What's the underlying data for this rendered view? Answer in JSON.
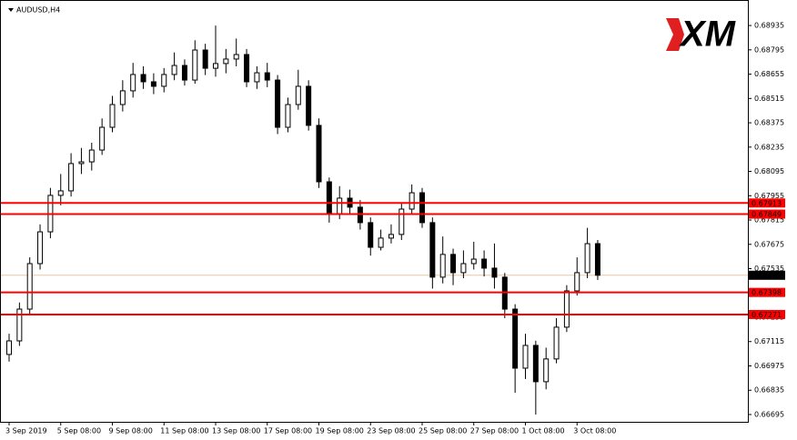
{
  "chart_data": {
    "type": "candlestick",
    "title": "AUDUSD,H4",
    "logo": "XM",
    "categories": [
      "3 Sep 2019",
      null,
      null,
      null,
      null,
      "5 Sep 08:00",
      null,
      null,
      null,
      null,
      "9 Sep 08:00",
      null,
      null,
      null,
      null,
      "11 Sep 08:00",
      null,
      null,
      null,
      null,
      "13 Sep 08:00",
      null,
      null,
      null,
      null,
      "17 Sep 08:00",
      null,
      null,
      null,
      null,
      "19 Sep 08:00",
      null,
      null,
      null,
      null,
      "23 Sep 08:00",
      null,
      null,
      null,
      null,
      "25 Sep 08:00",
      null,
      null,
      null,
      null,
      "27 Sep 08:00",
      null,
      null,
      null,
      null,
      "1 Oct 08:00",
      null,
      null,
      null,
      null,
      "3 Oct 08:00",
      null,
      null
    ],
    "open": [
      0.67041,
      0.67119,
      0.67302,
      0.67564,
      0.67747,
      0.67957,
      0.67983,
      0.6814,
      0.6815,
      0.68218,
      0.68349,
      0.6848,
      0.68559,
      0.68653,
      0.68611,
      0.68585,
      0.68653,
      0.68705,
      0.68621,
      0.68794,
      0.68689,
      0.68716,
      0.68742,
      0.68768,
      0.68611,
      0.68663,
      0.68621,
      0.68349,
      0.6848,
      0.68585,
      0.6836,
      0.68035,
      0.67852,
      0.67941,
      0.67889,
      0.678,
      0.67658,
      0.67711,
      0.67732,
      0.67878,
      0.67972,
      0.678,
      0.67486,
      0.67617,
      0.67512,
      0.67564,
      0.6759,
      0.67538,
      0.67486,
      0.67302,
      0.66962,
      0.67093,
      0.66884,
      0.67015,
      0.67198,
      0.67407,
      0.67512,
      0.67679
    ],
    "high": [
      0.6716,
      0.6734,
      0.676,
      0.6779,
      0.68,
      0.6808,
      0.682,
      0.6823,
      0.6826,
      0.684,
      0.6853,
      0.6862,
      0.6872,
      0.687,
      0.6866,
      0.6869,
      0.6878,
      0.6874,
      0.6885,
      0.6883,
      0.68935,
      0.688,
      0.6886,
      0.688,
      0.687,
      0.6872,
      0.6865,
      0.6852,
      0.6868,
      0.6862,
      0.684,
      0.6806,
      0.6801,
      0.6799,
      0.6793,
      0.6783,
      0.6776,
      0.6779,
      0.6791,
      0.6802,
      0.68,
      0.6783,
      0.6772,
      0.6765,
      0.6764,
      0.6769,
      0.6764,
      0.6768,
      0.6751,
      0.6733,
      0.6716,
      0.6712,
      0.6708,
      0.6725,
      0.6744,
      0.676,
      0.6777,
      0.677
    ],
    "low": [
      0.67,
      0.6709,
      0.6727,
      0.6753,
      0.6771,
      0.679,
      0.6795,
      0.6808,
      0.681,
      0.6819,
      0.6832,
      0.6844,
      0.6852,
      0.6857,
      0.6854,
      0.6855,
      0.6862,
      0.6859,
      0.686,
      0.6865,
      0.6864,
      0.6866,
      0.687,
      0.6858,
      0.6857,
      0.6858,
      0.6831,
      0.6832,
      0.6845,
      0.6833,
      0.68,
      0.678,
      0.6782,
      0.6785,
      0.6776,
      0.6761,
      0.6764,
      0.6768,
      0.677,
      0.6785,
      0.6777,
      0.6742,
      0.6745,
      0.6744,
      0.6748,
      0.6753,
      0.6749,
      0.6742,
      0.6725,
      0.6682,
      0.669,
      0.66695,
      0.6684,
      0.6699,
      0.6717,
      0.6738,
      0.6748,
      0.6747
    ],
    "close": [
      0.67119,
      0.67302,
      0.67564,
      0.67747,
      0.67957,
      0.67983,
      0.6814,
      0.6815,
      0.68218,
      0.68349,
      0.6848,
      0.68559,
      0.68653,
      0.68611,
      0.68585,
      0.68653,
      0.68705,
      0.68621,
      0.68794,
      0.68689,
      0.68716,
      0.68742,
      0.68768,
      0.68611,
      0.68663,
      0.68621,
      0.68349,
      0.6848,
      0.68585,
      0.6836,
      0.68035,
      0.67852,
      0.67941,
      0.67889,
      0.678,
      0.67658,
      0.67711,
      0.67732,
      0.67878,
      0.67972,
      0.678,
      0.67486,
      0.67617,
      0.67512,
      0.67564,
      0.6759,
      0.67538,
      0.67486,
      0.67302,
      0.66962,
      0.67093,
      0.66884,
      0.67015,
      0.67198,
      0.67407,
      0.67512,
      0.67679,
      0.67497
    ],
    "up_color": "#ffffff",
    "down_color": "#000000",
    "ylim": [
      0.66653,
      0.69082
    ],
    "yticks": [
      0.68935,
      0.68795,
      0.68655,
      0.68515,
      0.68375,
      0.68235,
      0.68095,
      0.67955,
      0.67815,
      0.67675,
      0.67535,
      0.67395,
      0.67255,
      0.67115,
      0.66975,
      0.66835,
      0.66695
    ],
    "levels": [
      0.67913,
      0.67849,
      0.67398,
      0.67271
    ],
    "level_color": "#ff0000",
    "current_price": 0.67497,
    "current_price_line_color": "#e8c8a8"
  }
}
